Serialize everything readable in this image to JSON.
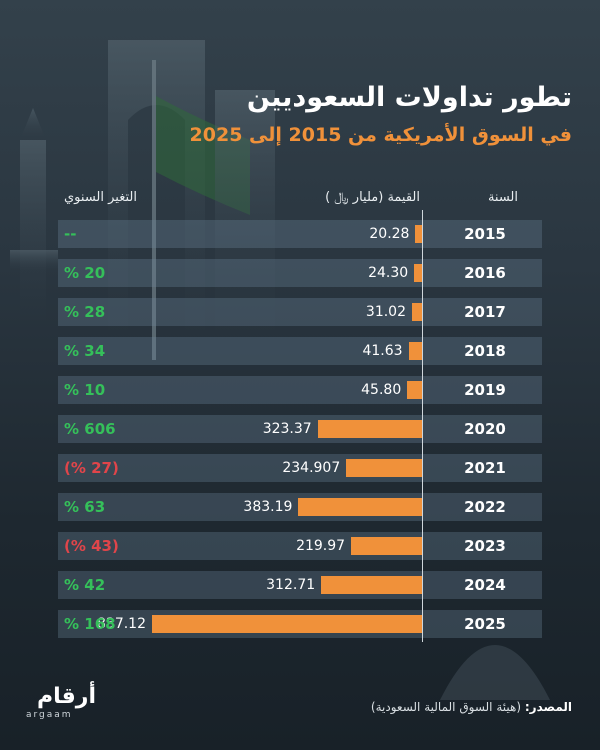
{
  "header": {
    "title": "تطور تداولات السعوديين",
    "subtitle": "في السوق الأمريكية من 2015 إلى 2025"
  },
  "columns": {
    "year": "السنة",
    "value": "القيمة (مليار ﷼ )",
    "change": "التغير السنوي"
  },
  "colors": {
    "bar": "#f0913a",
    "positive": "#35c05a",
    "negative": "#e0454a"
  },
  "chart_data": {
    "type": "bar",
    "orientation": "horizontal",
    "title": "تطور تداولات السعوديين",
    "subtitle": "في السوق الأمريكية من 2015 إلى 2025",
    "categories": [
      "2015",
      "2016",
      "2017",
      "2018",
      "2019",
      "2020",
      "2021",
      "2022",
      "2023",
      "2024",
      "2025"
    ],
    "values": [
      20.28,
      24.3,
      31.02,
      41.63,
      45.8,
      323.37,
      234.907,
      383.19,
      219.97,
      312.71,
      837.12
    ],
    "value_labels": [
      "20.28",
      "24.30",
      "31.02",
      "41.63",
      "45.80",
      "323.37",
      "234.907",
      "383.19",
      "219.97",
      "312.71",
      "837.12"
    ],
    "changes": [
      "--",
      "% 20",
      "% 28",
      "% 34",
      "% 10",
      "% 606",
      "(% 27)",
      "% 63",
      "(% 43)",
      "% 42",
      "% 168"
    ],
    "change_sign": [
      "flat",
      "pos",
      "pos",
      "pos",
      "pos",
      "pos",
      "neg",
      "pos",
      "neg",
      "pos",
      "pos"
    ],
    "xlim": [
      0,
      837.12
    ],
    "grid": false
  },
  "source": {
    "label": "المصدر:",
    "text": "(هيئة السوق المالية السعودية)"
  },
  "logo": {
    "name": "أرقام",
    "latin": "argaam"
  }
}
